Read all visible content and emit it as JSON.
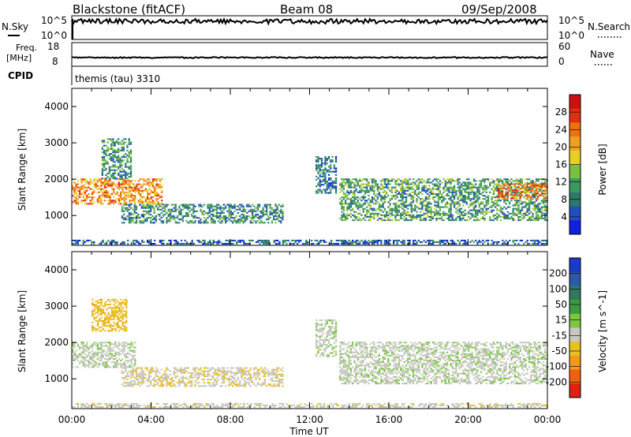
{
  "header": {
    "title_left": "Blackstone (fitACF)",
    "title_center": "Beam 08",
    "title_right": "09/Sep/2008"
  },
  "strips": {
    "nsky_label": "N.Sky",
    "nsky_ticks": [
      "10^5",
      "10^0"
    ],
    "nsearch_label": "N.Search",
    "nsearch_ticks": [
      "10^5",
      "10^0"
    ],
    "freq_label": "Freq.",
    "freq_units": "[MHz]",
    "freq_ticks": [
      "18",
      "8"
    ],
    "nave_label": "Nave",
    "nave_ticks": [
      "60",
      "0"
    ],
    "cpid_label": "CPID",
    "cpid_value": "themis (tau) 3310"
  },
  "colors": {
    "power_scale": [
      "#1020e0",
      "#2050c0",
      "#2e7a6a",
      "#3a9a60",
      "#7ac040",
      "#e8d020",
      "#f0a020",
      "#f07010",
      "#e03010",
      "#d01010"
    ],
    "velocity_scale": [
      "#1a3ac8",
      "#2a5aa8",
      "#2e7a60",
      "#3c9a40",
      "#78c840",
      "#c8c8c0",
      "#e8c020",
      "#f09a18",
      "#f06010",
      "#e02010"
    ],
    "ground_scatter": "#c8c8c0"
  },
  "chart_data": [
    {
      "type": "heatmap",
      "title": "Power",
      "xlabel": "",
      "ylabel": "Slant Range [km]",
      "colorbar_label": "Power [dB]",
      "colorbar_ticks": [
        "28",
        "24",
        "20",
        "16",
        "12",
        "8",
        "4"
      ],
      "clim": [
        0,
        32
      ],
      "x_ticks": [
        "00:00",
        "04:00",
        "08:00",
        "12:00",
        "16:00",
        "20:00",
        "00:00"
      ],
      "xlim": [
        0,
        24
      ],
      "y_ticks": [
        "4000",
        "3000",
        "2000",
        "1000"
      ],
      "ylim": [
        180,
        4500
      ],
      "regions": [
        {
          "t": [
            0.0,
            4.5
          ],
          "range": [
            1300,
            2000
          ],
          "power": 22
        },
        {
          "t": [
            1.5,
            3.0
          ],
          "range": [
            2000,
            3100
          ],
          "power": 10
        },
        {
          "t": [
            2.5,
            10.6
          ],
          "range": [
            780,
            1300
          ],
          "power": 9
        },
        {
          "t": [
            12.3,
            13.3
          ],
          "range": [
            1600,
            2600
          ],
          "power": 8
        },
        {
          "t": [
            13.5,
            24.0
          ],
          "range": [
            850,
            2000
          ],
          "power": 11
        },
        {
          "t": [
            21.5,
            24.0
          ],
          "range": [
            1450,
            1900
          ],
          "power": 24
        },
        {
          "t": [
            0.0,
            24.0
          ],
          "range": [
            200,
            320
          ],
          "power": 6
        }
      ]
    },
    {
      "type": "heatmap",
      "title": "Velocity",
      "xlabel": "Time UT",
      "ylabel": "Slant Range [km]",
      "colorbar_label": "Velocity [m s^-1]",
      "colorbar_ticks": [
        "200",
        "100",
        "50",
        "15",
        "-15",
        "-50",
        "-100",
        "-200"
      ],
      "clim": [
        -250,
        250
      ],
      "x_ticks": [
        "00:00",
        "04:00",
        "08:00",
        "12:00",
        "16:00",
        "20:00",
        "00:00"
      ],
      "xlim": [
        0,
        24
      ],
      "y_ticks": [
        "4000",
        "3000",
        "2000",
        "1000"
      ],
      "ylim": [
        180,
        4500
      ],
      "regions": [
        {
          "t": [
            0.0,
            3.2
          ],
          "range": [
            1300,
            2000
          ],
          "velocity": 0
        },
        {
          "t": [
            1.0,
            2.8
          ],
          "range": [
            2300,
            3200
          ],
          "velocity": -80
        },
        {
          "t": [
            2.5,
            10.6
          ],
          "range": [
            780,
            1300
          ],
          "velocity": -40
        },
        {
          "t": [
            12.3,
            13.3
          ],
          "range": [
            1600,
            2600
          ],
          "velocity": 0
        },
        {
          "t": [
            13.5,
            24.0
          ],
          "range": [
            850,
            2000
          ],
          "velocity": 0
        },
        {
          "t": [
            0.0,
            24.0
          ],
          "range": [
            200,
            320
          ],
          "velocity": -30
        }
      ]
    }
  ]
}
